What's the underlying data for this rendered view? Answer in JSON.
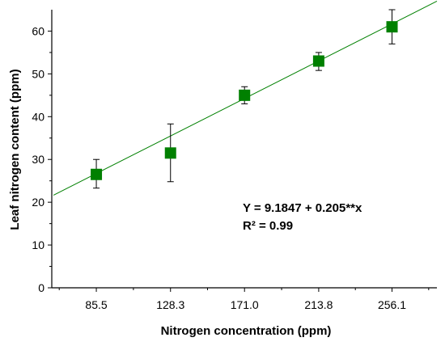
{
  "chart_data": {
    "type": "scatter",
    "title": "",
    "xlabel": "Nitrogen concentration (ppm)",
    "ylabel": "Leaf nitrogen content (ppm)",
    "x_tick_labels": [
      "85.5",
      "128.3",
      "171.0",
      "213.8",
      "256.1"
    ],
    "xlim": [
      59.8,
      282
    ],
    "ylim": [
      0,
      65
    ],
    "y_ticks": [
      0,
      10,
      20,
      30,
      40,
      50,
      60
    ],
    "grid": false,
    "marker": "square",
    "series": [
      {
        "x": [
          85.5,
          128.3,
          171.0,
          213.8,
          256.1
        ],
        "y": [
          26.5,
          31.5,
          45.0,
          53.0,
          61.0
        ],
        "err_low": [
          23.3,
          24.8,
          43.0,
          50.8,
          57.0
        ],
        "err_high": [
          30.0,
          38.3,
          47.0,
          55.0,
          65.0
        ]
      }
    ],
    "fit": {
      "intercept": 9.1847,
      "slope": 0.205
    },
    "annotations": [
      "Y = 9.1847 + 0.205**x",
      "R² = 0.99"
    ],
    "colors": {
      "marker": "#008000",
      "fit_line": "#008000",
      "error_bar": "#000000",
      "axis": "#000000"
    }
  }
}
